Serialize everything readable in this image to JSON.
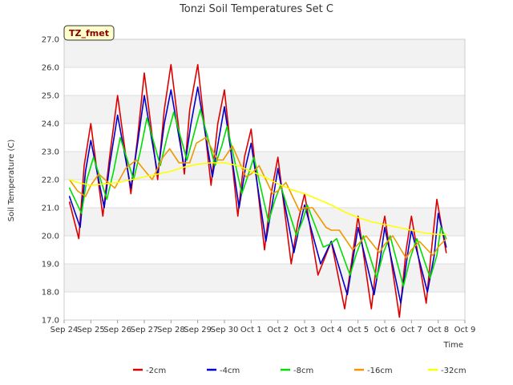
{
  "chart_data": {
    "type": "line",
    "title": "Tonzi Soil Temperatures Set C",
    "xlabel": "Time",
    "ylabel": "Soil Temperature (C)",
    "site_badge": "TZ_fmet",
    "xlim": [
      0,
      15
    ],
    "ylim": [
      17.0,
      27.0
    ],
    "x_ticks": [
      "Sep 24",
      "Sep 25",
      "Sep 26",
      "Sep 27",
      "Sep 28",
      "Sep 29",
      "Sep 30",
      "Oct 1",
      "Oct 2",
      "Oct 3",
      "Oct 4",
      "Oct 5",
      "Oct 6",
      "Oct 7",
      "Oct 8",
      "Oct 9"
    ],
    "y_ticks": [
      "17.0",
      "18.0",
      "19.0",
      "20.0",
      "21.0",
      "22.0",
      "23.0",
      "24.0",
      "25.0",
      "26.0",
      "27.0"
    ],
    "grid": true,
    "legend_position": "bottom",
    "series": [
      {
        "name": "-2cm",
        "color": "#dd0000",
        "x": [
          0.2,
          0.55,
          0.75,
          1.0,
          1.45,
          1.7,
          2.0,
          2.5,
          2.75,
          3.0,
          3.5,
          3.75,
          4.0,
          4.5,
          4.7,
          5.0,
          5.5,
          5.75,
          6.0,
          6.5,
          6.75,
          7.0,
          7.5,
          7.75,
          8.0,
          8.5,
          8.75,
          9.0,
          9.5,
          9.75,
          10.0,
          10.5,
          10.75,
          11.0,
          11.5,
          11.75,
          12.0,
          12.55,
          12.8,
          13.0,
          13.55,
          13.75,
          13.95,
          14.3
        ],
        "y": [
          21.2,
          19.9,
          22.5,
          24.0,
          20.7,
          22.8,
          25.0,
          21.5,
          23.5,
          25.8,
          22.0,
          24.5,
          26.1,
          22.2,
          24.5,
          26.1,
          21.8,
          24.0,
          25.2,
          20.7,
          22.8,
          23.8,
          19.5,
          21.5,
          22.8,
          19.0,
          20.5,
          21.5,
          18.6,
          19.2,
          19.8,
          17.4,
          19.0,
          20.7,
          17.4,
          19.5,
          20.7,
          17.1,
          19.5,
          20.7,
          17.6,
          19.5,
          21.3,
          19.4
        ]
      },
      {
        "name": "-4cm",
        "color": "#0000cc",
        "x": [
          0.2,
          0.6,
          0.8,
          1.0,
          1.5,
          1.7,
          2.0,
          2.5,
          2.75,
          3.0,
          3.5,
          3.75,
          4.0,
          4.5,
          4.75,
          5.0,
          5.55,
          5.8,
          6.0,
          6.55,
          6.8,
          7.0,
          7.55,
          7.8,
          8.0,
          8.6,
          8.8,
          9.0,
          9.6,
          9.85,
          10.0,
          10.6,
          10.8,
          11.0,
          11.6,
          11.85,
          12.0,
          12.6,
          12.85,
          13.0,
          13.6,
          13.85,
          14.0,
          14.3
        ],
        "y": [
          21.4,
          20.3,
          22.3,
          23.4,
          21.0,
          22.5,
          24.3,
          21.7,
          23.3,
          25.0,
          22.2,
          24.0,
          25.2,
          22.4,
          24.0,
          25.3,
          22.1,
          23.5,
          24.6,
          21.0,
          22.5,
          23.3,
          19.8,
          21.2,
          22.4,
          19.4,
          20.3,
          21.1,
          19.0,
          19.5,
          19.8,
          17.9,
          19.1,
          20.3,
          17.9,
          19.3,
          20.3,
          17.6,
          19.3,
          20.2,
          18.0,
          19.3,
          20.8,
          19.6
        ]
      },
      {
        "name": "-8cm",
        "color": "#00dd00",
        "x": [
          0.2,
          0.65,
          0.85,
          1.1,
          1.6,
          1.85,
          2.1,
          2.6,
          2.85,
          3.1,
          3.6,
          3.85,
          4.1,
          4.6,
          4.85,
          5.1,
          5.65,
          5.9,
          6.1,
          6.65,
          6.9,
          7.1,
          7.65,
          7.9,
          8.1,
          8.7,
          8.95,
          9.1,
          9.7,
          9.95,
          10.2,
          10.7,
          10.95,
          11.2,
          11.7,
          11.95,
          12.2,
          12.7,
          12.95,
          13.2,
          13.7,
          13.95,
          14.1,
          14.3
        ],
        "y": [
          21.7,
          20.8,
          22.0,
          22.8,
          21.3,
          22.3,
          23.5,
          22.0,
          23.0,
          24.2,
          22.5,
          23.5,
          24.4,
          22.7,
          23.6,
          24.5,
          22.5,
          23.2,
          23.9,
          21.5,
          22.2,
          22.8,
          20.5,
          21.3,
          21.8,
          20.0,
          20.6,
          21.1,
          19.6,
          19.7,
          19.9,
          18.6,
          19.4,
          20.0,
          18.5,
          19.4,
          20.0,
          18.2,
          19.2,
          19.9,
          18.5,
          19.3,
          20.3,
          19.9
        ]
      },
      {
        "name": "-16cm",
        "color": "#ee9900",
        "x": [
          0.2,
          0.5,
          0.8,
          1.0,
          1.3,
          1.65,
          1.9,
          2.3,
          2.7,
          2.95,
          3.3,
          3.7,
          3.95,
          4.3,
          4.7,
          4.95,
          5.3,
          5.75,
          5.95,
          6.3,
          6.8,
          7.0,
          7.3,
          7.8,
          8.0,
          8.3,
          8.8,
          9.0,
          9.3,
          9.8,
          10.0,
          10.3,
          10.8,
          11.0,
          11.3,
          11.8,
          12.0,
          12.3,
          12.8,
          13.0,
          13.3,
          13.8,
          14.0,
          14.3
        ],
        "y": [
          22.0,
          21.6,
          21.4,
          21.8,
          22.2,
          21.9,
          21.7,
          22.4,
          22.7,
          22.4,
          22.0,
          22.8,
          23.1,
          22.6,
          22.6,
          23.3,
          23.5,
          22.7,
          22.7,
          23.2,
          22.1,
          22.2,
          22.5,
          21.5,
          21.6,
          21.9,
          20.9,
          21.0,
          21.0,
          20.3,
          20.2,
          20.2,
          19.5,
          19.7,
          20.0,
          19.4,
          19.7,
          20.0,
          19.2,
          19.5,
          19.8,
          19.3,
          19.6,
          19.9
        ]
      },
      {
        "name": "-32cm",
        "color": "#ffff00",
        "x": [
          0.2,
          0.5,
          1.0,
          1.5,
          2.0,
          2.5,
          3.0,
          3.5,
          4.0,
          4.5,
          5.0,
          5.5,
          6.0,
          6.5,
          7.0,
          7.5,
          8.0,
          8.5,
          9.0,
          9.5,
          10.0,
          10.5,
          11.0,
          11.5,
          12.0,
          12.5,
          13.0,
          13.5,
          14.0,
          14.3
        ],
        "y": [
          22.0,
          21.9,
          21.8,
          21.85,
          21.9,
          22.0,
          22.1,
          22.2,
          22.3,
          22.45,
          22.55,
          22.6,
          22.6,
          22.5,
          22.3,
          22.1,
          21.85,
          21.65,
          21.5,
          21.3,
          21.1,
          20.85,
          20.65,
          20.5,
          20.4,
          20.3,
          20.2,
          20.1,
          20.05,
          20.05
        ]
      }
    ]
  }
}
